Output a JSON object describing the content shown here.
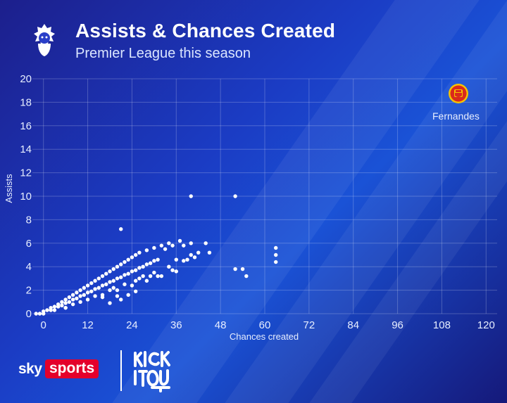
{
  "header": {
    "title": "Assists & Chances Created",
    "subtitle": "Premier League this season"
  },
  "colors": {
    "background": "#1b3cc4",
    "point": "#ffffff",
    "badge": "#da291c"
  },
  "icons": {
    "league_logo": "premier-league-lion-icon",
    "club_badge": "manchester-united-crest-icon",
    "broadcaster": "sky-sports-logo",
    "campaign": "kick-it-out-logo"
  },
  "highlight": {
    "label": "Fernandes",
    "x": 119,
    "y": 19
  },
  "footer": {
    "sky": "sky",
    "sports": "sports"
  },
  "chart_data": {
    "type": "scatter",
    "xlabel": "Chances created",
    "ylabel": "Assists",
    "xlim": [
      -3,
      123
    ],
    "ylim": [
      0,
      20
    ],
    "xticks": [
      0,
      12,
      24,
      36,
      48,
      60,
      72,
      84,
      96,
      108,
      120
    ],
    "yticks": [
      0,
      2,
      4,
      6,
      8,
      10,
      12,
      14,
      16,
      18,
      20
    ],
    "grid": true,
    "points": [
      [
        -2,
        0
      ],
      [
        -1,
        0
      ],
      [
        0,
        0.2
      ],
      [
        0,
        0
      ],
      [
        1,
        0.3
      ],
      [
        2,
        0.5
      ],
      [
        3,
        0.6
      ],
      [
        4,
        0.8
      ],
      [
        5,
        1
      ],
      [
        6,
        1.2
      ],
      [
        7,
        1.4
      ],
      [
        8,
        1.6
      ],
      [
        9,
        1.8
      ],
      [
        10,
        2
      ],
      [
        11,
        2.2
      ],
      [
        12,
        2.4
      ],
      [
        13,
        2.6
      ],
      [
        14,
        2.8
      ],
      [
        15,
        3
      ],
      [
        16,
        3.2
      ],
      [
        17,
        3.4
      ],
      [
        18,
        3.6
      ],
      [
        19,
        3.8
      ],
      [
        20,
        4
      ],
      [
        21,
        4.2
      ],
      [
        22,
        4.4
      ],
      [
        23,
        4.6
      ],
      [
        24,
        4.8
      ],
      [
        25,
        5
      ],
      [
        26,
        5.2
      ],
      [
        28,
        5.4
      ],
      [
        30,
        5.6
      ],
      [
        32,
        5.8
      ],
      [
        34,
        6
      ],
      [
        2,
        0.3
      ],
      [
        4,
        0.6
      ],
      [
        6,
        0.9
      ],
      [
        8,
        1.2
      ],
      [
        10,
        1.5
      ],
      [
        12,
        1.8
      ],
      [
        14,
        2.1
      ],
      [
        16,
        2.4
      ],
      [
        18,
        2.7
      ],
      [
        20,
        3
      ],
      [
        22,
        3.3
      ],
      [
        24,
        3.6
      ],
      [
        26,
        3.9
      ],
      [
        28,
        4.2
      ],
      [
        30,
        4.5
      ],
      [
        5,
        0.7
      ],
      [
        7,
        1
      ],
      [
        9,
        1.3
      ],
      [
        11,
        1.6
      ],
      [
        13,
        1.9
      ],
      [
        15,
        2.2
      ],
      [
        17,
        2.5
      ],
      [
        19,
        2.8
      ],
      [
        21,
        3.1
      ],
      [
        23,
        3.4
      ],
      [
        25,
        3.7
      ],
      [
        27,
        4
      ],
      [
        29,
        4.3
      ],
      [
        31,
        4.6
      ],
      [
        6,
        0.5
      ],
      [
        10,
        1
      ],
      [
        14,
        1.5
      ],
      [
        18,
        2
      ],
      [
        22,
        2.5
      ],
      [
        26,
        3
      ],
      [
        30,
        3.5
      ],
      [
        34,
        4
      ],
      [
        38,
        4.5
      ],
      [
        3,
        0.3
      ],
      [
        8,
        0.8
      ],
      [
        12,
        1.2
      ],
      [
        16,
        1.6
      ],
      [
        20,
        2
      ],
      [
        24,
        2.4
      ],
      [
        28,
        2.8
      ],
      [
        32,
        3.2
      ],
      [
        36,
        3.6
      ],
      [
        40,
        5
      ],
      [
        42,
        5.2
      ],
      [
        44,
        6
      ],
      [
        37,
        6.2
      ],
      [
        39,
        4.6
      ],
      [
        41,
        4.8
      ],
      [
        36,
        4.6
      ],
      [
        33,
        5.5
      ],
      [
        35,
        5.8
      ],
      [
        38,
        5.8
      ],
      [
        40,
        6
      ],
      [
        21,
        7.2
      ],
      [
        40,
        10
      ],
      [
        52,
        10
      ],
      [
        52,
        3.8
      ],
      [
        54,
        3.8
      ],
      [
        55,
        3.2
      ],
      [
        63,
        5.6
      ],
      [
        63,
        5
      ],
      [
        63,
        4.4
      ],
      [
        18,
        0.9
      ],
      [
        19,
        2.2
      ],
      [
        21,
        1.2
      ],
      [
        23,
        1.6
      ],
      [
        25,
        2.8
      ],
      [
        27,
        3.2
      ],
      [
        29,
        3.2
      ],
      [
        31,
        3.2
      ],
      [
        6,
        0.5
      ],
      [
        35,
        3.7
      ],
      [
        45,
        5.2
      ],
      [
        25,
        1.9
      ],
      [
        20,
        1.5
      ],
      [
        16,
        1.4
      ]
    ]
  }
}
